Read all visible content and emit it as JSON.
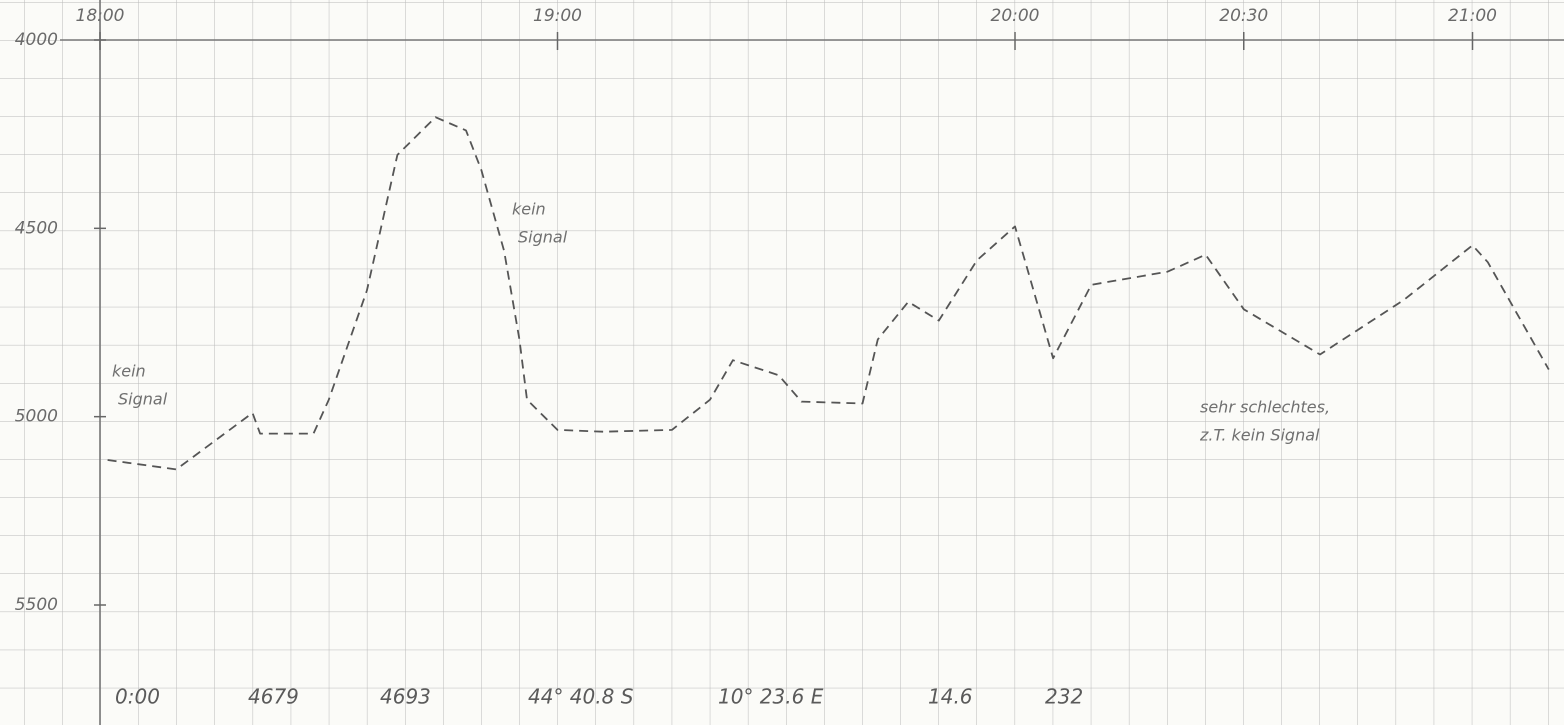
{
  "chart_data": {
    "type": "line",
    "color": "#555555",
    "line_style": "dashed",
    "x": [
      "18:01",
      "18:10",
      "18:20",
      "18:21",
      "18:28",
      "18:30",
      "18:35",
      "18:39",
      "18:44",
      "18:48",
      "18:50",
      "18:53",
      "18:55",
      "18:56",
      "19:00",
      "19:06",
      "19:15",
      "19:20",
      "19:23",
      "19:29",
      "19:32",
      "19:40",
      "19:42",
      "19:46",
      "19:50",
      "19:55",
      "20:00",
      "20:02",
      "20:05",
      "20:10",
      "20:20",
      "20:25",
      "20:30",
      "20:40",
      "20:51",
      "21:00",
      "21:02",
      "21:10"
    ],
    "values": [
      5115,
      5140,
      4990,
      5045,
      5045,
      4955,
      4665,
      4305,
      4205,
      4240,
      4345,
      4560,
      4795,
      4955,
      5035,
      5040,
      5035,
      4955,
      4850,
      4890,
      4960,
      4965,
      4795,
      4695,
      4745,
      4585,
      4495,
      4635,
      4845,
      4650,
      4615,
      4570,
      4715,
      4835,
      4690,
      4545,
      4590,
      4875
    ],
    "xlim": [
      "18:00",
      "21:12"
    ],
    "xticks": [
      "18:00",
      "19:00",
      "20:00",
      "20:30",
      "21:00"
    ],
    "ylim": [
      5500,
      4000
    ],
    "yticks": [
      4000,
      4500,
      5000,
      5500
    ],
    "annotations": [
      [
        "kein",
        "Signal"
      ],
      [
        "kein",
        "Signal"
      ],
      [
        "sehr schlechtes,",
        "z.T. kein Signal"
      ]
    ],
    "footer_notes": [
      "0:00",
      "4679",
      "4693",
      "44° 40.8 S",
      "10° 23.6 E",
      "14.6",
      "232"
    ]
  }
}
